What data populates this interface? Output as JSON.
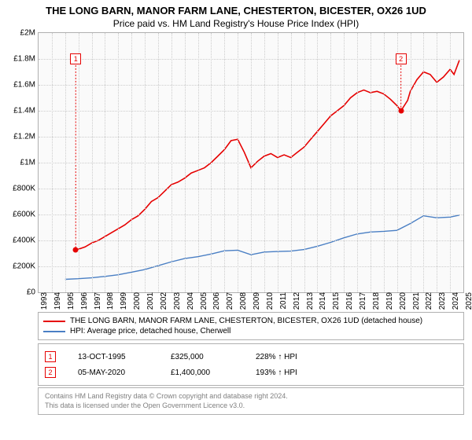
{
  "title": "THE LONG BARN, MANOR FARM LANE, CHESTERTON, BICESTER, OX26 1UD",
  "subtitle": "Price paid vs. HM Land Registry's House Price Index (HPI)",
  "chart": {
    "type": "line",
    "background_color": "#fafafa",
    "grid_color": "#cccccc",
    "border_color": "#b0b0b0",
    "xlim": [
      1993,
      2025
    ],
    "ylim": [
      0,
      2000000
    ],
    "ytick_step": 200000,
    "yticks": [
      {
        "v": 0,
        "label": "£0"
      },
      {
        "v": 200000,
        "label": "£200K"
      },
      {
        "v": 400000,
        "label": "£400K"
      },
      {
        "v": 600000,
        "label": "£600K"
      },
      {
        "v": 800000,
        "label": "£800K"
      },
      {
        "v": 1000000,
        "label": "£1M"
      },
      {
        "v": 1200000,
        "label": "£1.2M"
      },
      {
        "v": 1400000,
        "label": "£1.4M"
      },
      {
        "v": 1600000,
        "label": "£1.6M"
      },
      {
        "v": 1800000,
        "label": "£1.8M"
      },
      {
        "v": 2000000,
        "label": "£2M"
      }
    ],
    "xticks": [
      1993,
      1994,
      1995,
      1996,
      1997,
      1998,
      1999,
      2000,
      2001,
      2002,
      2003,
      2004,
      2005,
      2006,
      2007,
      2008,
      2009,
      2010,
      2011,
      2012,
      2013,
      2014,
      2015,
      2016,
      2017,
      2018,
      2019,
      2020,
      2021,
      2022,
      2023,
      2024,
      2025
    ],
    "series": [
      {
        "name": "property",
        "color": "#e60000",
        "width": 1.6,
        "points": [
          [
            1995.8,
            325000
          ],
          [
            1996.5,
            350000
          ],
          [
            1997,
            380000
          ],
          [
            1997.5,
            400000
          ],
          [
            1998,
            430000
          ],
          [
            1998.5,
            460000
          ],
          [
            1999,
            490000
          ],
          [
            1999.5,
            520000
          ],
          [
            2000,
            560000
          ],
          [
            2000.5,
            590000
          ],
          [
            2001,
            640000
          ],
          [
            2001.5,
            700000
          ],
          [
            2002,
            730000
          ],
          [
            2002.5,
            780000
          ],
          [
            2003,
            830000
          ],
          [
            2003.5,
            850000
          ],
          [
            2004,
            880000
          ],
          [
            2004.5,
            920000
          ],
          [
            2005,
            940000
          ],
          [
            2005.5,
            960000
          ],
          [
            2006,
            1000000
          ],
          [
            2006.5,
            1050000
          ],
          [
            2007,
            1100000
          ],
          [
            2007.5,
            1170000
          ],
          [
            2008,
            1180000
          ],
          [
            2008.5,
            1080000
          ],
          [
            2009,
            960000
          ],
          [
            2009.5,
            1010000
          ],
          [
            2010,
            1050000
          ],
          [
            2010.5,
            1070000
          ],
          [
            2011,
            1040000
          ],
          [
            2011.5,
            1060000
          ],
          [
            2012,
            1040000
          ],
          [
            2012.5,
            1080000
          ],
          [
            2013,
            1120000
          ],
          [
            2013.5,
            1180000
          ],
          [
            2014,
            1240000
          ],
          [
            2014.5,
            1300000
          ],
          [
            2015,
            1360000
          ],
          [
            2015.5,
            1400000
          ],
          [
            2016,
            1440000
          ],
          [
            2016.5,
            1500000
          ],
          [
            2017,
            1540000
          ],
          [
            2017.5,
            1560000
          ],
          [
            2018,
            1540000
          ],
          [
            2018.5,
            1550000
          ],
          [
            2019,
            1530000
          ],
          [
            2019.5,
            1490000
          ],
          [
            2020,
            1440000
          ],
          [
            2020.3,
            1400000
          ],
          [
            2020.8,
            1480000
          ],
          [
            2021,
            1550000
          ],
          [
            2021.5,
            1640000
          ],
          [
            2022,
            1700000
          ],
          [
            2022.5,
            1680000
          ],
          [
            2023,
            1620000
          ],
          [
            2023.5,
            1660000
          ],
          [
            2024,
            1720000
          ],
          [
            2024.3,
            1680000
          ],
          [
            2024.7,
            1790000
          ]
        ]
      },
      {
        "name": "hpi",
        "color": "#4a7fc4",
        "width": 1.4,
        "points": [
          [
            1995,
            100000
          ],
          [
            1996,
            105000
          ],
          [
            1997,
            112000
          ],
          [
            1998,
            122000
          ],
          [
            1999,
            135000
          ],
          [
            2000,
            155000
          ],
          [
            2001,
            175000
          ],
          [
            2002,
            205000
          ],
          [
            2003,
            235000
          ],
          [
            2004,
            260000
          ],
          [
            2005,
            275000
          ],
          [
            2006,
            295000
          ],
          [
            2007,
            320000
          ],
          [
            2008,
            325000
          ],
          [
            2009,
            290000
          ],
          [
            2010,
            310000
          ],
          [
            2011,
            315000
          ],
          [
            2012,
            318000
          ],
          [
            2013,
            330000
          ],
          [
            2014,
            355000
          ],
          [
            2015,
            385000
          ],
          [
            2016,
            420000
          ],
          [
            2017,
            450000
          ],
          [
            2018,
            465000
          ],
          [
            2019,
            470000
          ],
          [
            2020,
            478000
          ],
          [
            2021,
            530000
          ],
          [
            2022,
            590000
          ],
          [
            2023,
            575000
          ],
          [
            2024,
            580000
          ],
          [
            2024.7,
            595000
          ]
        ]
      }
    ],
    "markers": [
      {
        "n": "1",
        "x": 1995.8,
        "y": 325000,
        "box_y": 1800000,
        "color": "#e60000"
      },
      {
        "n": "2",
        "x": 2020.3,
        "y": 1400000,
        "box_y": 1800000,
        "color": "#e60000"
      }
    ]
  },
  "legend": {
    "items": [
      {
        "color": "#e60000",
        "label": "THE LONG BARN, MANOR FARM LANE, CHESTERTON, BICESTER, OX26 1UD (detached house)"
      },
      {
        "color": "#4a7fc4",
        "label": "HPI: Average price, detached house, Cherwell"
      }
    ]
  },
  "marker_table": [
    {
      "n": "1",
      "color": "#e60000",
      "date": "13-OCT-1995",
      "price": "£325,000",
      "pct": "228% ↑ HPI"
    },
    {
      "n": "2",
      "color": "#e60000",
      "date": "05-MAY-2020",
      "price": "£1,400,000",
      "pct": "193% ↑ HPI"
    }
  ],
  "footer": {
    "line1": "Contains HM Land Registry data © Crown copyright and database right 2024.",
    "line2": "This data is licensed under the Open Government Licence v3.0."
  }
}
